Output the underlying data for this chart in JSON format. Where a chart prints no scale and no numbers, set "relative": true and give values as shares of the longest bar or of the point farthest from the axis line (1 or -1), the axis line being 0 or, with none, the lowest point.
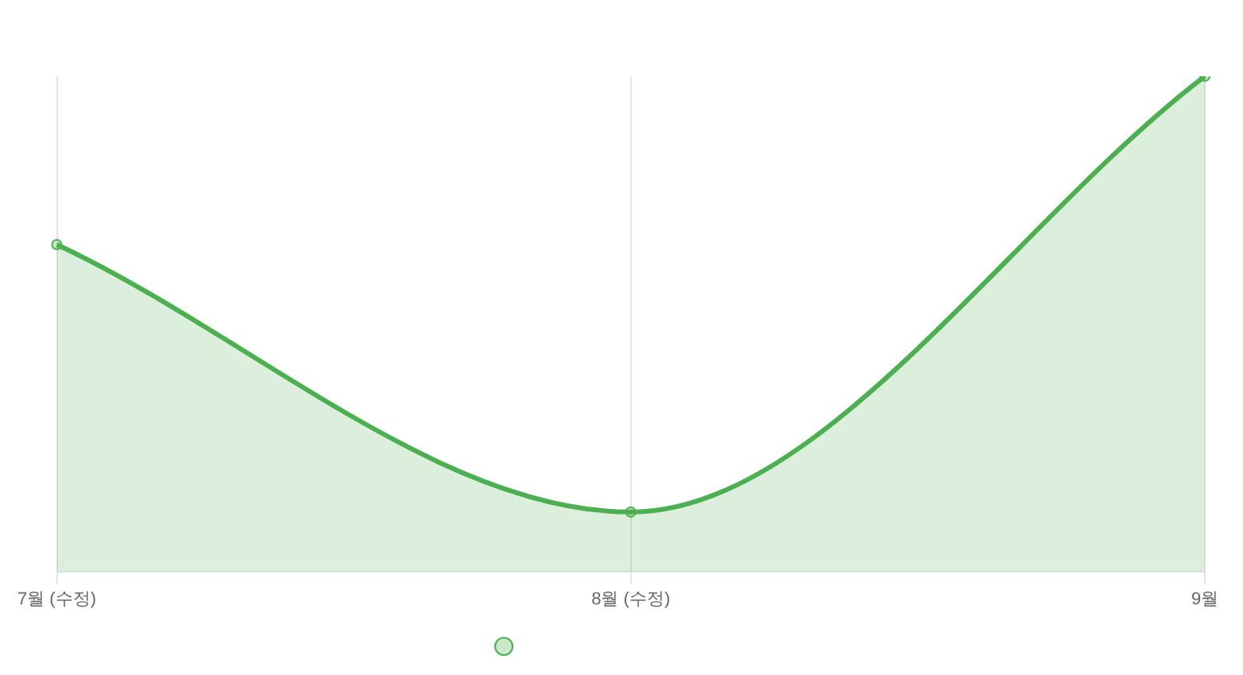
{
  "chart_data": {
    "type": "area",
    "categories": [
      "7월 (수정)",
      "8월 (수정)",
      "9월"
    ],
    "relative": true,
    "series": [
      {
        "color": "#4caf50",
        "values": [
          0.66,
          0.12,
          1
        ]
      }
    ],
    "grid": "x",
    "marker": "circle",
    "line_style": "solid"
  }
}
